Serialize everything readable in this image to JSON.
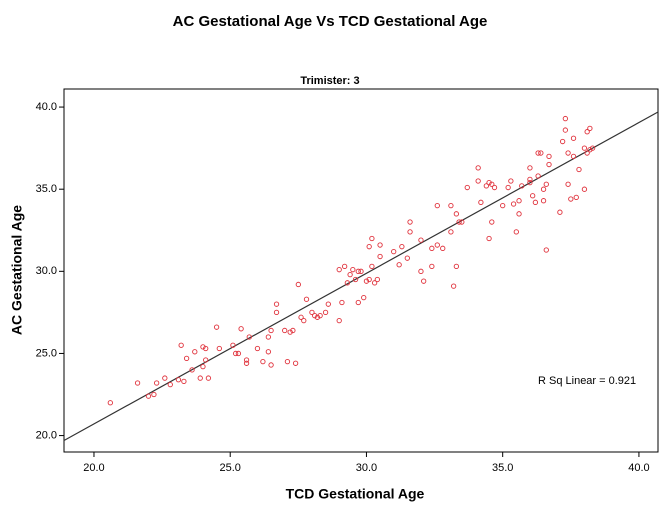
{
  "chart_data": {
    "type": "scatter",
    "title": "AC Gestational Age Vs TCD Gestational Age",
    "subtitle": "Trimister: 3",
    "x_label": "TCD Gestational Age",
    "y_label": "AC Gestational Age",
    "annotation": "R Sq Linear = 0.921",
    "color": "#e0323c",
    "line_color": "#333333",
    "xlim": [
      18.9,
      40.7
    ],
    "ylim": [
      19.0,
      41.1
    ],
    "xticks": [
      {
        "value": 20,
        "label": "20.0"
      },
      {
        "value": 25,
        "label": "25.0"
      },
      {
        "value": 30,
        "label": "30.0"
      },
      {
        "value": 35,
        "label": "35.0"
      },
      {
        "value": 40,
        "label": "40.0"
      }
    ],
    "yticks": [
      {
        "value": 20,
        "label": "20.0"
      },
      {
        "value": 25,
        "label": "25.0"
      },
      {
        "value": 30,
        "label": "30.0"
      },
      {
        "value": 35,
        "label": "35.0"
      },
      {
        "value": 40,
        "label": "40.0"
      }
    ],
    "fit_line": {
      "x": [
        18.9,
        40.7
      ],
      "y": [
        19.7,
        39.7
      ]
    },
    "x": [
      20.6,
      21.6,
      22.0,
      22.2,
      22.3,
      22.6,
      22.8,
      23.1,
      23.2,
      23.3,
      23.4,
      23.6,
      23.7,
      23.9,
      24.0,
      24.0,
      24.1,
      24.1,
      24.2,
      24.5,
      24.6,
      25.1,
      25.2,
      25.3,
      25.4,
      25.6,
      25.6,
      25.7,
      26.0,
      26.2,
      26.4,
      26.4,
      26.5,
      26.5,
      26.7,
      26.7,
      27.0,
      27.1,
      27.2,
      27.3,
      27.4,
      27.5,
      27.6,
      27.7,
      27.8,
      28.0,
      28.1,
      28.2,
      28.3,
      28.5,
      28.6,
      29.0,
      29.0,
      29.1,
      29.2,
      29.3,
      29.4,
      29.5,
      29.6,
      29.7,
      29.7,
      29.8,
      29.9,
      30.0,
      30.1,
      30.1,
      30.2,
      30.2,
      30.3,
      30.4,
      30.5,
      30.5,
      31.0,
      31.2,
      31.3,
      31.5,
      31.6,
      31.6,
      32.0,
      32.0,
      32.1,
      32.4,
      32.4,
      32.6,
      32.6,
      32.8,
      33.1,
      33.1,
      33.2,
      33.3,
      33.3,
      33.4,
      33.5,
      33.7,
      34.1,
      34.1,
      34.2,
      34.4,
      34.5,
      34.5,
      34.6,
      34.6,
      34.7,
      35.0,
      35.2,
      35.3,
      35.4,
      35.5,
      35.6,
      35.6,
      35.7,
      36.0,
      36.0,
      36.0,
      36.1,
      36.2,
      36.3,
      36.3,
      36.4,
      36.5,
      36.5,
      36.6,
      36.6,
      36.7,
      36.7,
      37.1,
      37.2,
      37.3,
      37.3,
      37.4,
      37.4,
      37.5,
      37.6,
      37.6,
      37.7,
      37.8,
      38.0,
      38.0,
      38.1,
      38.1,
      38.2,
      38.2,
      38.3
    ],
    "values": [
      22.0,
      23.2,
      22.4,
      22.5,
      23.2,
      23.5,
      23.1,
      23.4,
      25.5,
      23.3,
      24.7,
      24.0,
      25.1,
      23.5,
      24.2,
      25.4,
      25.3,
      24.6,
      23.5,
      26.6,
      25.3,
      25.5,
      25.0,
      25.0,
      26.5,
      24.4,
      24.6,
      26.0,
      25.3,
      24.5,
      26.0,
      25.1,
      26.4,
      24.3,
      27.5,
      28.0,
      26.4,
      24.5,
      26.3,
      26.4,
      24.4,
      29.2,
      27.2,
      27.0,
      28.3,
      27.5,
      27.3,
      27.2,
      27.3,
      27.5,
      28.0,
      27.0,
      30.1,
      28.1,
      30.3,
      29.3,
      29.8,
      30.1,
      29.5,
      30.0,
      28.1,
      30.0,
      28.4,
      29.4,
      29.5,
      31.5,
      32.0,
      30.3,
      29.3,
      29.5,
      30.9,
      31.6,
      31.2,
      30.4,
      31.5,
      30.8,
      33.0,
      32.4,
      31.9,
      30.0,
      29.4,
      31.4,
      30.3,
      34.0,
      31.6,
      31.4,
      32.4,
      34.0,
      29.1,
      33.5,
      30.3,
      33.0,
      33.0,
      35.1,
      36.3,
      35.5,
      34.2,
      35.2,
      35.4,
      32.0,
      33.0,
      35.3,
      35.1,
      34.0,
      35.1,
      35.5,
      34.1,
      32.4,
      34.3,
      33.5,
      35.2,
      36.3,
      35.4,
      35.6,
      34.6,
      34.2,
      37.2,
      35.8,
      37.2,
      35.0,
      34.3,
      35.3,
      31.3,
      37.0,
      36.5,
      33.6,
      37.9,
      39.3,
      38.6,
      37.2,
      35.3,
      34.4,
      37.0,
      38.1,
      34.5,
      36.2,
      37.5,
      35.0,
      38.5,
      37.2,
      38.7,
      37.4,
      37.5
    ]
  }
}
